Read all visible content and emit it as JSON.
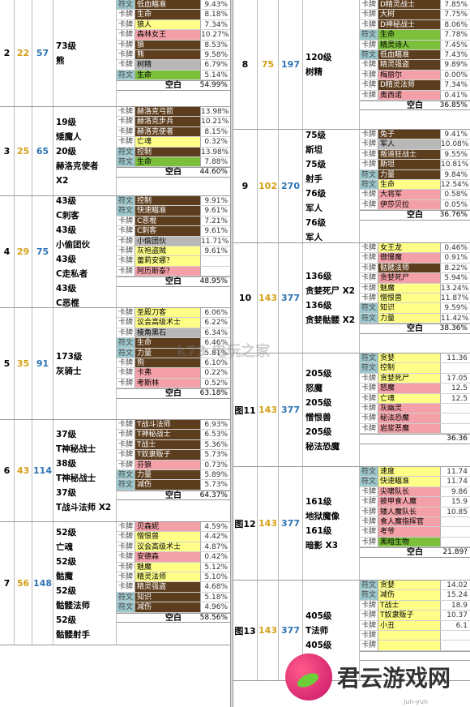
{
  "left": [
    {
      "lv": "2",
      "n1": "22",
      "n2": "57",
      "desc": "73级\n熊",
      "h": 132,
      "rows": [
        [
          "符文",
          "低血瞄准",
          "9.43%",
          "brown"
        ],
        [
          "卡牌",
          "生命",
          "8.18%",
          "brown"
        ],
        [
          "卡牌",
          "狼人",
          "7.34%",
          "yellow"
        ],
        [
          "卡牌",
          "森林女王",
          "10.27%",
          "pink"
        ],
        [
          "卡牌",
          "狼",
          "8.53%",
          "brown"
        ],
        [
          "卡牌",
          "熊",
          "9.58%",
          "brown"
        ],
        [
          "卡牌",
          "树精",
          "6.79%",
          "gray"
        ],
        [
          "符文",
          "生命",
          "5.14%",
          "green"
        ]
      ],
      "blank": "空白",
      "blank_pct": "54.99%"
    },
    {
      "lv": "3",
      "n1": "25",
      "n2": "65",
      "desc": "19级\n矮魔人\n20级\n赫洛克使者\nX2",
      "h": 110,
      "rows": [
        [
          "卡牌",
          "赫洛克弓箭",
          "13.98%",
          "brown"
        ],
        [
          "卡牌",
          "赫洛克步兵",
          "10.21%",
          "brown"
        ],
        [
          "卡牌",
          "赫洛克使者",
          "8.15%",
          "brown"
        ],
        [
          "卡牌",
          "亡魂",
          "0.32%",
          "yellow"
        ],
        [
          "符文",
          "控制",
          "13.98%",
          "brown"
        ],
        [
          "符文",
          "生命",
          "7.88%",
          "green"
        ]
      ],
      "blank": "空白",
      "blank_pct": "44.60%"
    },
    {
      "lv": "4",
      "n1": "29",
      "n2": "75",
      "desc": "43级\nC刺客\n43级\n小偷团伙\n43级\nC走私者\n43级\nC恶棍",
      "h": 138,
      "rows": [
        [
          "符文",
          "控制",
          "9.91%",
          "brown"
        ],
        [
          "符文",
          "快速瞄准",
          "9.61%",
          "brown"
        ],
        [
          "卡牌",
          "C恶棍",
          "7.21%",
          "brown"
        ],
        [
          "卡牌",
          "C刺客",
          "9.61%",
          "brown"
        ],
        [
          "卡牌",
          "小偷团伙",
          "11.71%",
          "gray"
        ],
        [
          "卡牌",
          "灰袍盗贼",
          "9.61%",
          "yellow"
        ],
        [
          "卡牌",
          "蕾莉安娜？",
          "",
          "yellow"
        ],
        [
          "卡牌",
          "阿历斯泰？",
          "",
          "pink"
        ]
      ],
      "blank": "空白",
      "blank_pct": "48.95%"
    },
    {
      "lv": "5",
      "n1": "35",
      "n2": "91",
      "desc": "173级\n灰骑士",
      "h": 138,
      "rows": [
        [
          "卡牌",
          "圣殿刀客",
          "6.06%",
          "yellow"
        ],
        [
          "卡牌",
          "议会高级术士",
          "6.22%",
          "yellow"
        ],
        [
          "卡牌",
          "棱角黑石",
          "6.34%",
          "gray"
        ],
        [
          "符文",
          "生命",
          "6.46%",
          "brown"
        ],
        [
          "符文",
          "力量",
          "5.81%",
          "brown"
        ],
        [
          "卡牌",
          "狗",
          "6.10%",
          "brown"
        ],
        [
          "卡牌",
          "卡弗",
          "0.22%",
          "pink"
        ],
        [
          "卡牌",
          "考斯林",
          "0.52%",
          "pink"
        ]
      ],
      "blank": "空白",
      "blank_pct": "63.18%"
    },
    {
      "lv": "6",
      "n1": "43",
      "n2": "114",
      "desc": "37级\nT神秘战士\n38级\nT神秘战士\n37级\nT战斗法师 X2",
      "h": 126,
      "rows": [
        [
          "卡牌",
          "T战斗法师",
          "6.93%",
          "brown"
        ],
        [
          "卡牌",
          "T神秘战士",
          "6.53%",
          "brown"
        ],
        [
          "卡牌",
          "T战士",
          "5.36%",
          "brown"
        ],
        [
          "卡牌",
          "T奴隶贩子",
          "5.73%",
          "brown"
        ],
        [
          "卡牌",
          "芬狼",
          "0.73%",
          "pink"
        ],
        [
          "符文",
          "力量",
          "5.89%",
          "brown"
        ],
        [
          "符文",
          "减伤",
          "5.73%",
          "brown"
        ]
      ],
      "blank": "空白",
      "blank_pct": "64.37%"
    },
    {
      "lv": "7",
      "n1": "56",
      "n2": "148",
      "desc": "52级\n亡魂\n52级\n骷魔\n52级\n骷髅法师\n52级\n骷髅射手",
      "h": 152,
      "rows": [
        [
          "卡牌",
          "贝森妮",
          "4.59%",
          "pink"
        ],
        [
          "卡牌",
          "憎恨兽",
          "4.42%",
          "yellow"
        ],
        [
          "卡牌",
          "议会高级术士",
          "4.87%",
          "yellow"
        ],
        [
          "卡牌",
          "安德森",
          "0.42%",
          "pink"
        ],
        [
          "卡牌",
          "魅魔",
          "5.12%",
          "yellow"
        ],
        [
          "卡牌",
          "精灵法师",
          "5.10%",
          "yellow"
        ],
        [
          "卡牌",
          "精灵强盗",
          "4.68%",
          "brown"
        ],
        [
          "符文",
          "知识",
          "5.18%",
          "brown"
        ],
        [
          "符文",
          "减伤",
          "4.96%",
          "brown"
        ]
      ],
      "blank": "空白",
      "blank_pct": "58.56%"
    }
  ],
  "right": [
    {
      "lv": "8",
      "n1": "75",
      "n2": "197",
      "desc": "120级\n树精",
      "h": 160,
      "rows": [
        [
          "卡牌",
          "D精灵战士",
          "7.85%",
          "brown"
        ],
        [
          "卡牌",
          "大树",
          "7.75%",
          "brown"
        ],
        [
          "卡牌",
          "D神秘战士",
          "8.06%",
          "brown"
        ],
        [
          "符文",
          "生命",
          "7.78%",
          "green"
        ],
        [
          "卡牌",
          "精灵诗人",
          "7.45%",
          "green"
        ],
        [
          "符文",
          "低血瞄准",
          "7.43%",
          "brown"
        ],
        [
          "卡牌",
          "精灵强盗",
          "9.89%",
          "brown"
        ],
        [
          "卡牌",
          "梅丽尔",
          "0.00%",
          "pink"
        ],
        [
          "卡牌",
          "D精灵法师",
          "7.34%",
          "brown"
        ],
        [
          "卡牌",
          "奥西诺",
          "0.41%",
          "pink"
        ]
      ],
      "blank": "空白",
      "blank_pct": "36.85%"
    },
    {
      "lv": "9",
      "n1": "102",
      "n2": "270",
      "desc": "75级\n斯坦\n75级\n射手\n76级\n军人\n76级\n军人",
      "h": 140,
      "rows": [
        [
          "卡牌",
          "兔子",
          "9.41%",
          "brown"
        ],
        [
          "卡牌",
          "军人",
          "10.08%",
          "gray"
        ],
        [
          "卡牌",
          "叛道狂战士",
          "9.55%",
          "brown"
        ],
        [
          "卡牌",
          "斯坦",
          "10.81%",
          "brown"
        ],
        [
          "符文",
          "力量",
          "9.84%",
          "brown"
        ],
        [
          "符文",
          "生命",
          "12.54%",
          "yellow"
        ],
        [
          "卡牌",
          "大将军",
          "0.58%",
          "pink"
        ],
        [
          "卡牌",
          "伊莎贝拉",
          "0.05%",
          "pink"
        ]
      ],
      "blank": "空白",
      "blank_pct": "36.76%"
    },
    {
      "lv": "10",
      "n1": "143",
      "n2": "377",
      "desc": "136级\n贪婪死尸 X2\n136级\n贪婪骷髅 X2",
      "h": 136,
      "rows": [
        [
          "卡牌",
          "女王龙",
          "0.46%",
          "yellow"
        ],
        [
          "卡牌",
          "傲慢魔",
          "0.91%",
          "pink"
        ],
        [
          "卡牌",
          "骷髅法师",
          "8.22%",
          "brown"
        ],
        [
          "卡牌",
          "贪婪死尸",
          "5.94%",
          "pink"
        ],
        [
          "卡牌",
          "魅魔",
          "13.24%",
          "yellow"
        ],
        [
          "卡牌",
          "憎恨兽",
          "11.87%",
          "yellow"
        ],
        [
          "符文",
          "知识",
          "9.59%",
          "yellow"
        ],
        [
          "符文",
          "力量",
          "11.42%",
          "yellow"
        ]
      ],
      "blank": "空白",
      "blank_pct": "38.36%"
    },
    {
      "lv": "图11",
      "n1": "143",
      "n2": "377",
      "desc": "205级\n怒魔\n205级\n憎恨兽\n205级\n秘法恐魔",
      "h": 140,
      "rows": [
        [
          "符文",
          "贪婪",
          "11.36",
          "yellow"
        ],
        [
          "符文",
          "控制",
          "",
          "yellow"
        ],
        [
          "卡牌",
          "贪婪死尸",
          "17.05",
          "yellow"
        ],
        [
          "卡牌",
          "怒魔",
          "12.5",
          "pink"
        ],
        [
          "卡牌",
          "亡魂",
          "12.5",
          "yellow"
        ],
        [
          "卡牌",
          "灰幽灵",
          "",
          "pink"
        ],
        [
          "卡牌",
          "秘法恐魔",
          "",
          "pink"
        ],
        [
          "卡牌",
          "岩浆恶魔",
          "",
          "pink"
        ]
      ],
      "blank": "",
      "blank_pct": "36.36"
    },
    {
      "lv": "图12",
      "n1": "143",
      "n2": "377",
      "desc": "161级\n地狱魔像\n161级\n暗影 X3",
      "h": 140,
      "rows": [
        [
          "符文",
          "速度",
          "11.74",
          "yellow"
        ],
        [
          "符文",
          "快速瞄准",
          "11.74",
          "yellow"
        ],
        [
          "卡牌",
          "尖啸队长",
          "9.86",
          "pink"
        ],
        [
          "卡牌",
          "披甲食人魔",
          "15.9",
          "pink"
        ],
        [
          "卡牌",
          "矮人魔队长",
          "10.85",
          "pink"
        ],
        [
          "卡牌",
          "食人魔指挥官",
          "",
          "pink"
        ],
        [
          "卡牌",
          "考爷",
          "",
          "pink"
        ],
        [
          "卡牌",
          "黑暗生物",
          "",
          "green"
        ]
      ],
      "blank": "空白",
      "blank_pct": "21.89?"
    },
    {
      "lv": "图13",
      "n1": "143",
      "n2": "377",
      "desc": "405级\nT法师\n405级",
      "h": 124,
      "rows": [
        [
          "符文",
          "贪婪",
          "14.02",
          "yellow"
        ],
        [
          "符文",
          "减伤",
          "15.24",
          "yellow"
        ],
        [
          "卡牌",
          "T战士",
          "18.9",
          "yellow"
        ],
        [
          "卡牌",
          "T奴隶贩子",
          "10.37",
          "yellow"
        ],
        [
          "卡牌",
          "小丑",
          "6.1",
          "yellow"
        ],
        [
          "卡牌",
          "",
          "",
          "yellow"
        ],
        [
          "卡牌",
          "",
          "",
          "yellow"
        ]
      ],
      "blank": "",
      "blank_pct": ""
    }
  ],
  "watermark": {
    "center": "k73 电玩之家",
    "brand": "君云游戏网",
    "url": "jun-yun"
  }
}
